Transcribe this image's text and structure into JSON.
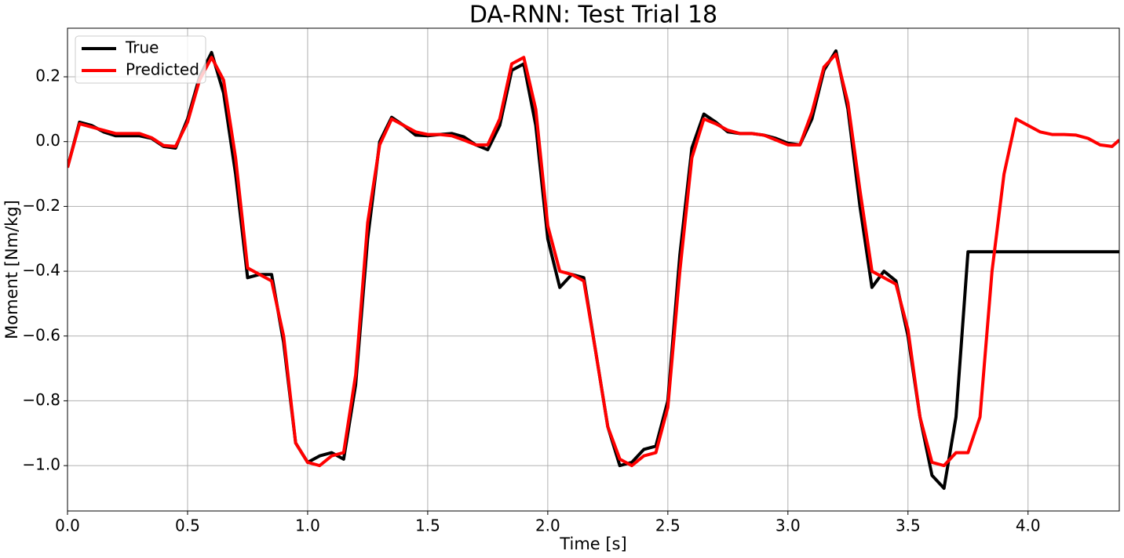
{
  "chart_data": {
    "type": "line",
    "title": "DA-RNN: Test Trial 18",
    "x_label": "Time [s]",
    "y_label": "Moment [Nm/kg]",
    "xlim": [
      0,
      4.38
    ],
    "ylim": [
      -1.14,
      0.35
    ],
    "xticks": [
      {
        "value": 0,
        "label": "0.0"
      },
      0.5,
      {
        "value": 1,
        "label": "1.0"
      },
      1.5,
      {
        "value": 2,
        "label": "2.0"
      },
      2.5,
      {
        "value": 3,
        "label": "3.0"
      },
      3.5,
      {
        "value": 4,
        "label": "4.0"
      }
    ],
    "yticks": [
      {
        "value": -1,
        "label": "−1.0"
      },
      {
        "value": -0.8,
        "label": "−0.8"
      },
      {
        "value": -0.6,
        "label": "−0.6"
      },
      {
        "value": -0.4,
        "label": "−0.4"
      },
      {
        "value": -0.2,
        "label": "−0.2"
      },
      {
        "value": 0,
        "label": "0.0"
      },
      0.2
    ],
    "grid": true,
    "legend": "upper-left",
    "x": [
      0,
      0.05,
      0.1,
      0.15,
      0.2,
      0.25,
      0.3,
      0.35,
      0.4,
      0.45,
      0.5,
      0.55,
      0.6,
      0.65,
      0.7,
      0.75,
      0.8,
      0.85,
      0.9,
      0.95,
      1.0,
      1.05,
      1.1,
      1.15,
      1.2,
      1.25,
      1.3,
      1.35,
      1.4,
      1.45,
      1.5,
      1.55,
      1.6,
      1.65,
      1.7,
      1.75,
      1.8,
      1.85,
      1.9,
      1.95,
      2.0,
      2.05,
      2.1,
      2.15,
      2.2,
      2.25,
      2.3,
      2.35,
      2.4,
      2.45,
      2.5,
      2.55,
      2.6,
      2.65,
      2.7,
      2.75,
      2.8,
      2.85,
      2.9,
      2.95,
      3.0,
      3.05,
      3.1,
      3.15,
      3.2,
      3.25,
      3.3,
      3.35,
      3.4,
      3.45,
      3.5,
      3.55,
      3.6,
      3.65,
      3.7,
      3.75,
      3.8,
      3.85,
      3.9,
      3.95,
      4.0,
      4.05,
      4.1,
      4.15,
      4.2,
      4.25,
      4.3,
      4.35,
      4.38
    ],
    "series": [
      {
        "name": "True",
        "color": "#000000",
        "values": [
          -0.08,
          0.06,
          0.05,
          0.03,
          0.018,
          0.018,
          0.018,
          0.01,
          -0.015,
          -0.02,
          0.07,
          0.2,
          0.275,
          0.15,
          -0.1,
          -0.42,
          -0.41,
          -0.41,
          -0.62,
          -0.93,
          -0.99,
          -0.97,
          -0.96,
          -0.98,
          -0.75,
          -0.3,
          0.0,
          0.075,
          0.05,
          0.02,
          0.018,
          0.022,
          0.025,
          0.015,
          -0.01,
          -0.025,
          0.05,
          0.22,
          0.24,
          0.05,
          -0.3,
          -0.45,
          -0.41,
          -0.42,
          -0.65,
          -0.88,
          -1.0,
          -0.99,
          -0.95,
          -0.94,
          -0.8,
          -0.35,
          -0.02,
          0.085,
          0.06,
          0.03,
          0.025,
          0.025,
          0.02,
          0.01,
          -0.005,
          -0.01,
          0.07,
          0.22,
          0.28,
          0.1,
          -0.2,
          -0.45,
          -0.4,
          -0.43,
          -0.6,
          -0.85,
          -1.03,
          -1.07,
          -0.85,
          -0.34,
          -0.34,
          -0.34,
          -0.34,
          -0.34,
          -0.34,
          -0.34,
          -0.34,
          -0.34,
          -0.34,
          -0.34,
          -0.34,
          -0.34,
          -0.34
        ]
      },
      {
        "name": "Predicted",
        "color": "#ff0000",
        "values": [
          -0.08,
          0.055,
          0.045,
          0.035,
          0.025,
          0.025,
          0.025,
          0.012,
          -0.012,
          -0.015,
          0.06,
          0.19,
          0.26,
          0.19,
          -0.05,
          -0.39,
          -0.41,
          -0.43,
          -0.6,
          -0.93,
          -0.99,
          -1.0,
          -0.97,
          -0.96,
          -0.72,
          -0.25,
          -0.01,
          0.07,
          0.05,
          0.03,
          0.022,
          0.022,
          0.018,
          0.005,
          -0.01,
          -0.01,
          0.07,
          0.24,
          0.26,
          0.1,
          -0.26,
          -0.4,
          -0.41,
          -0.43,
          -0.65,
          -0.88,
          -0.98,
          -1.0,
          -0.97,
          -0.96,
          -0.82,
          -0.4,
          -0.05,
          0.07,
          0.055,
          0.035,
          0.025,
          0.025,
          0.02,
          0.005,
          -0.01,
          -0.01,
          0.09,
          0.23,
          0.27,
          0.12,
          -0.15,
          -0.4,
          -0.42,
          -0.44,
          -0.58,
          -0.85,
          -0.99,
          -1.0,
          -0.96,
          -0.96,
          -0.85,
          -0.4,
          -0.1,
          0.07,
          0.05,
          0.03,
          0.022,
          0.022,
          0.02,
          0.01,
          -0.01,
          -0.015,
          0.005
        ]
      }
    ]
  }
}
